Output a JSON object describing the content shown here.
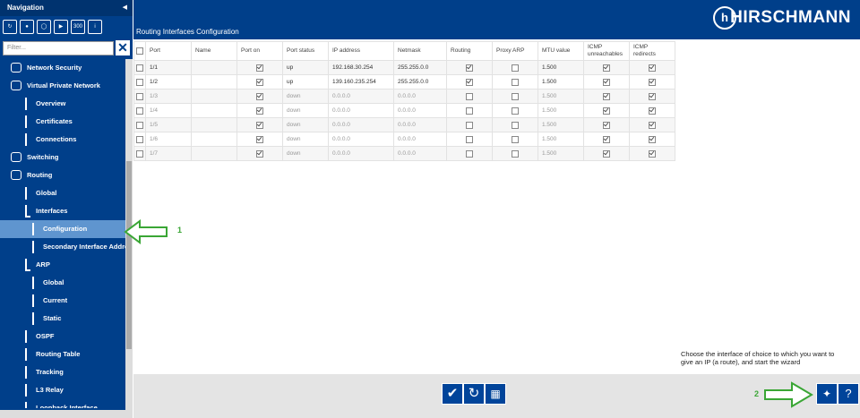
{
  "navigation": {
    "title": "Navigation",
    "toolbar_badge": "300",
    "filter_placeholder": "Filter...",
    "items": [
      {
        "label": "Network Security"
      },
      {
        "label": "Virtual Private Network",
        "children": [
          {
            "label": "Overview"
          },
          {
            "label": "Certificates"
          },
          {
            "label": "Connections"
          }
        ]
      },
      {
        "label": "Switching"
      },
      {
        "label": "Routing",
        "children": [
          {
            "label": "Global"
          },
          {
            "label": "Interfaces",
            "children": [
              {
                "label": "Configuration",
                "selected": true
              },
              {
                "label": "Secondary Interface Addres"
              }
            ]
          },
          {
            "label": "ARP",
            "children": [
              {
                "label": "Global"
              },
              {
                "label": "Current"
              },
              {
                "label": "Static"
              }
            ]
          },
          {
            "label": "OSPF"
          },
          {
            "label": "Routing Table"
          },
          {
            "label": "Tracking"
          },
          {
            "label": "L3 Relay"
          },
          {
            "label": "Loopback Interface"
          }
        ]
      }
    ]
  },
  "header": {
    "title": "Routing Interfaces Configuration",
    "brand": "HIRSCHMANN"
  },
  "table": {
    "columns": [
      "Port",
      "Name",
      "Port on",
      "Port status",
      "IP address",
      "Netmask",
      "Routing",
      "Proxy ARP",
      "MTU value",
      "ICMP unreachables",
      "ICMP redirects"
    ],
    "rows": [
      [
        "1/1",
        "",
        true,
        "up",
        "192.168.30.254",
        "255.255.0.0",
        true,
        false,
        "1.500",
        true,
        true
      ],
      [
        "1/2",
        "",
        true,
        "up",
        "139.160.235.254",
        "255.255.0.0",
        true,
        false,
        "1.500",
        true,
        true
      ],
      [
        "1/3",
        "",
        true,
        "down",
        "0.0.0.0",
        "0.0.0.0",
        false,
        false,
        "1.500",
        true,
        true
      ],
      [
        "1/4",
        "",
        true,
        "down",
        "0.0.0.0",
        "0.0.0.0",
        false,
        false,
        "1.500",
        true,
        true
      ],
      [
        "1/5",
        "",
        true,
        "down",
        "0.0.0.0",
        "0.0.0.0",
        false,
        false,
        "1.500",
        true,
        true
      ],
      [
        "1/6",
        "",
        true,
        "down",
        "0.0.0.0",
        "0.0.0.0",
        false,
        false,
        "1.500",
        true,
        true
      ],
      [
        "1/7",
        "",
        true,
        "down",
        "0.0.0.0",
        "0.0.0.0",
        false,
        false,
        "1.500",
        true,
        true
      ]
    ]
  },
  "annotations": {
    "marker_1": "1",
    "marker_2": "2",
    "hint": "Choose the interface of choice to which you want to give an IP (a route), and start the wizard"
  }
}
